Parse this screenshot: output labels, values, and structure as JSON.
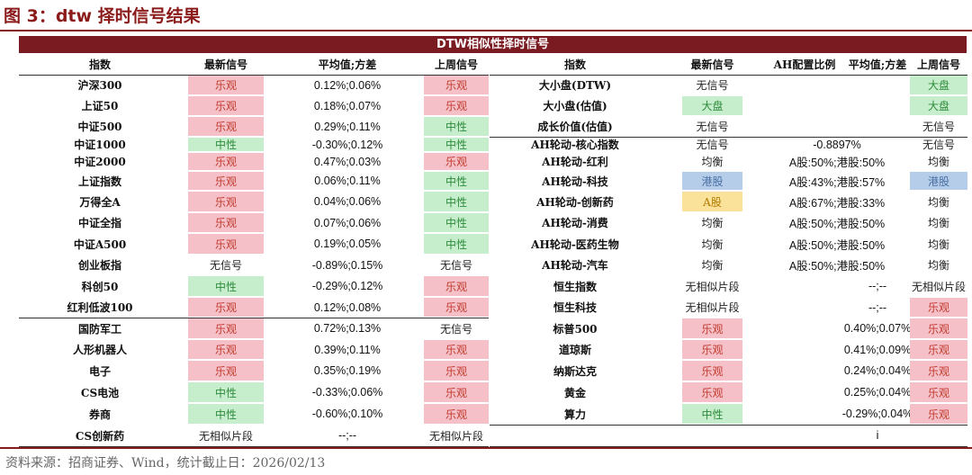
{
  "figure_title": "图 3：dtw 择时信号结果",
  "banner": "DTW相似性择时信号",
  "colors": {
    "optimistic": "#f6c0c9",
    "neutral": "#c6edcc",
    "hk": "#b5cde8",
    "ashare": "#fbe29a"
  },
  "left": {
    "headers": [
      "指数",
      "最新信号",
      "平均值;方差",
      "上周信号"
    ],
    "rows": [
      {
        "name": "沪深300",
        "signal": "乐观",
        "stat": "0.12%;0.06%",
        "last": "乐观"
      },
      {
        "name": "上证50",
        "signal": "乐观",
        "stat": "0.18%;0.07%",
        "last": "乐观"
      },
      {
        "name": "中证500",
        "signal": "乐观",
        "stat": "0.29%;0.11%",
        "last": "中性"
      },
      {
        "name": "中证1000",
        "signal": "中性",
        "stat": "-0.30%;0.12%",
        "last": "中性"
      },
      {
        "name": "中证2000",
        "signal": "乐观",
        "stat": "0.47%;0.03%",
        "last": "乐观"
      },
      {
        "name": "上证指数",
        "signal": "乐观",
        "stat": "0.06%;0.11%",
        "last": "中性"
      },
      {
        "name": "万得全A",
        "signal": "乐观",
        "stat": "0.04%;0.06%",
        "last": "中性"
      },
      {
        "name": "中证全指",
        "signal": "乐观",
        "stat": "0.07%;0.06%",
        "last": "中性"
      },
      {
        "name": "中证A500",
        "signal": "乐观",
        "stat": "0.19%;0.05%",
        "last": "中性"
      },
      {
        "name": "创业板指",
        "signal": "无信号",
        "stat": "-0.89%;0.15%",
        "last": "无信号"
      },
      {
        "name": "科创50",
        "signal": "中性",
        "stat": "-0.29%;0.12%",
        "last": "乐观"
      },
      {
        "name": "红利低波100",
        "signal": "乐观",
        "stat": "0.12%;0.08%",
        "last": "乐观"
      },
      {
        "name": "国防军工",
        "signal": "乐观",
        "stat": "0.72%;0.13%",
        "last": "无信号"
      },
      {
        "name": "人形机器人",
        "signal": "乐观",
        "stat": "0.39%;0.11%",
        "last": "乐观"
      },
      {
        "name": "电子",
        "signal": "乐观",
        "stat": "0.35%;0.19%",
        "last": "乐观"
      },
      {
        "name": "CS电池",
        "signal": "中性",
        "stat": "-0.33%;0.06%",
        "last": "乐观"
      },
      {
        "name": "券商",
        "signal": "中性",
        "stat": "-0.60%;0.10%",
        "last": "乐观"
      },
      {
        "name": "CS创新药",
        "signal": "无相似片段",
        "stat": "--;--",
        "last": "无相似片段"
      }
    ]
  },
  "right": {
    "headers": [
      "指数",
      "最新信号",
      "AH配置比例",
      "平均值;方差",
      "上周信号"
    ],
    "rows": [
      {
        "name": "大小盘(DTW)",
        "signal": "无信号",
        "ratio": "",
        "stat": "",
        "last": "大盘"
      },
      {
        "name": "大小盘(估值)",
        "signal": "大盘",
        "ratio": "",
        "stat": "",
        "last": "大盘"
      },
      {
        "name": "成长价值(估值)",
        "signal": "无信号",
        "ratio": "",
        "stat": "",
        "last": "无信号"
      },
      {
        "name": "AH轮动-核心指数",
        "signal": "无信号",
        "ratio": "-0.8897%",
        "stat": "",
        "last": "无信号"
      },
      {
        "name": "AH轮动-红利",
        "signal": "均衡",
        "ratio": "A股:50%;港股:50%",
        "stat": "",
        "last": "均衡"
      },
      {
        "name": "AH轮动-科技",
        "signal": "港股",
        "ratio": "A股:43%;港股:57%",
        "stat": "",
        "last": "港股"
      },
      {
        "name": "AH轮动-创新药",
        "signal": "A股",
        "ratio": "A股:67%;港股:33%",
        "stat": "",
        "last": "均衡"
      },
      {
        "name": "AH轮动-消费",
        "signal": "均衡",
        "ratio": "A股:50%;港股:50%",
        "stat": "",
        "last": "均衡"
      },
      {
        "name": "AH轮动-医药生物",
        "signal": "均衡",
        "ratio": "A股:50%;港股:50%",
        "stat": "",
        "last": "均衡"
      },
      {
        "name": "AH轮动-汽车",
        "signal": "均衡",
        "ratio": "A股:50%;港股:50%",
        "stat": "",
        "last": "均衡"
      },
      {
        "name": "恒生指数",
        "signal": "无相似片段",
        "ratio": "",
        "stat": "--;--",
        "last": "无相似片段"
      },
      {
        "name": "恒生科技",
        "signal": "无相似片段",
        "ratio": "",
        "stat": "--;--",
        "last": "乐观"
      },
      {
        "name": "标普500",
        "signal": "乐观",
        "ratio": "",
        "stat": "0.40%;0.07%",
        "last": "乐观"
      },
      {
        "name": "道琼斯",
        "signal": "乐观",
        "ratio": "",
        "stat": "0.41%;0.09%",
        "last": "乐观"
      },
      {
        "name": "纳斯达克",
        "signal": "乐观",
        "ratio": "",
        "stat": "0.24%;0.04%",
        "last": "乐观"
      },
      {
        "name": "黄金",
        "signal": "乐观",
        "ratio": "",
        "stat": "0.25%;0.04%",
        "last": "乐观"
      },
      {
        "name": "算力",
        "signal": "中性",
        "ratio": "",
        "stat": "-0.29%;0.04%",
        "last": "乐观"
      },
      {
        "name": "",
        "signal": "",
        "ratio": "",
        "stat": "i",
        "last": ""
      }
    ]
  },
  "source": "资料来源：招商证券、Wind，统计截止日：2026/02/13"
}
